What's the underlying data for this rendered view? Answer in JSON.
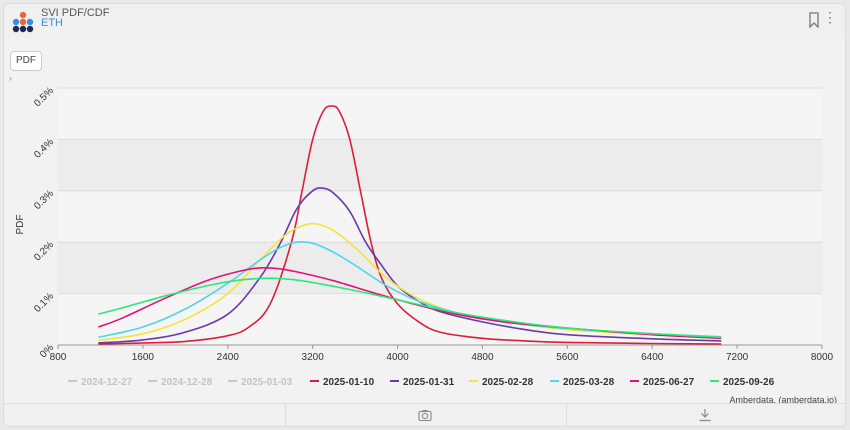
{
  "header": {
    "title": "SVI PDF/CDF",
    "subtitle": "ETH",
    "logo_icon": "amberdata-logo-icon"
  },
  "toolbar": {
    "pdf_button_label": "PDF",
    "expand_icon": "chevron-right-icon"
  },
  "footer": {
    "credit": "Amberdata, (amberdata.io)",
    "camera_icon": "camera-icon",
    "download_icon": "download-icon"
  },
  "watermark": {
    "text": "amberdata"
  },
  "chart_data": {
    "type": "line",
    "title": "",
    "xlabel": "",
    "ylabel": "PDF",
    "xlim": [
      800,
      8000
    ],
    "ylim": [
      0,
      0.5
    ],
    "x_ticks": [
      "800",
      "1600",
      "2400",
      "3200",
      "4000",
      "4800",
      "5600",
      "6400",
      "7200",
      "8000"
    ],
    "y_ticks": [
      "0%",
      "0.1%",
      "0.2%",
      "0.3%",
      "0.4%",
      "0.5%"
    ],
    "y_unit": "%",
    "grid": true,
    "legend_position": "bottom",
    "series": [
      {
        "name": "2024-12-27",
        "color": "#c8c8c8",
        "hidden": true,
        "points": []
      },
      {
        "name": "2024-12-28",
        "color": "#c8c8c8",
        "hidden": true,
        "points": []
      },
      {
        "name": "2025-01-03",
        "color": "#c8c8c8",
        "hidden": true,
        "points": []
      },
      {
        "name": "2025-01-10",
        "color": "#dc1e3c",
        "hidden": false,
        "points": [
          [
            1180,
            0.002
          ],
          [
            1600,
            0.004
          ],
          [
            2000,
            0.007
          ],
          [
            2400,
            0.018
          ],
          [
            2600,
            0.035
          ],
          [
            2800,
            0.08
          ],
          [
            3000,
            0.2
          ],
          [
            3100,
            0.3
          ],
          [
            3200,
            0.4
          ],
          [
            3300,
            0.455
          ],
          [
            3380,
            0.465
          ],
          [
            3450,
            0.455
          ],
          [
            3550,
            0.4
          ],
          [
            3650,
            0.3
          ],
          [
            3750,
            0.2
          ],
          [
            3850,
            0.13
          ],
          [
            4000,
            0.08
          ],
          [
            4200,
            0.045
          ],
          [
            4400,
            0.025
          ],
          [
            4800,
            0.013
          ],
          [
            5200,
            0.008
          ],
          [
            5600,
            0.005
          ],
          [
            6400,
            0.003
          ],
          [
            7050,
            0.002
          ]
        ]
      },
      {
        "name": "2025-01-31",
        "color": "#6a3aa5",
        "hidden": false,
        "points": [
          [
            1180,
            0.004
          ],
          [
            1600,
            0.01
          ],
          [
            2000,
            0.025
          ],
          [
            2400,
            0.06
          ],
          [
            2700,
            0.13
          ],
          [
            2900,
            0.2
          ],
          [
            3050,
            0.265
          ],
          [
            3200,
            0.3
          ],
          [
            3300,
            0.305
          ],
          [
            3400,
            0.295
          ],
          [
            3550,
            0.26
          ],
          [
            3700,
            0.2
          ],
          [
            3850,
            0.155
          ],
          [
            4000,
            0.115
          ],
          [
            4200,
            0.085
          ],
          [
            4400,
            0.065
          ],
          [
            4800,
            0.045
          ],
          [
            5200,
            0.03
          ],
          [
            5600,
            0.02
          ],
          [
            6400,
            0.012
          ],
          [
            7050,
            0.008
          ]
        ]
      },
      {
        "name": "2025-02-28",
        "color": "#f1e63a",
        "hidden": false,
        "points": [
          [
            1180,
            0.009
          ],
          [
            1600,
            0.022
          ],
          [
            2000,
            0.05
          ],
          [
            2400,
            0.1
          ],
          [
            2700,
            0.165
          ],
          [
            2950,
            0.215
          ],
          [
            3150,
            0.235
          ],
          [
            3300,
            0.232
          ],
          [
            3450,
            0.215
          ],
          [
            3650,
            0.18
          ],
          [
            3900,
            0.13
          ],
          [
            4200,
            0.09
          ],
          [
            4600,
            0.06
          ],
          [
            5000,
            0.045
          ],
          [
            5600,
            0.03
          ],
          [
            6400,
            0.02
          ],
          [
            7050,
            0.014
          ]
        ]
      },
      {
        "name": "2025-03-28",
        "color": "#4fd5ee",
        "hidden": false,
        "points": [
          [
            1180,
            0.015
          ],
          [
            1600,
            0.035
          ],
          [
            2000,
            0.07
          ],
          [
            2400,
            0.12
          ],
          [
            2700,
            0.165
          ],
          [
            2900,
            0.19
          ],
          [
            3050,
            0.2
          ],
          [
            3200,
            0.198
          ],
          [
            3400,
            0.18
          ],
          [
            3600,
            0.155
          ],
          [
            3900,
            0.115
          ],
          [
            4200,
            0.085
          ],
          [
            4600,
            0.06
          ],
          [
            5000,
            0.045
          ],
          [
            5600,
            0.032
          ],
          [
            6400,
            0.022
          ],
          [
            7050,
            0.016
          ]
        ]
      },
      {
        "name": "2025-06-27",
        "color": "#e0137a",
        "hidden": false,
        "points": [
          [
            1180,
            0.035
          ],
          [
            1400,
            0.052
          ],
          [
            1800,
            0.09
          ],
          [
            2200,
            0.125
          ],
          [
            2500,
            0.143
          ],
          [
            2700,
            0.15
          ],
          [
            2900,
            0.148
          ],
          [
            3100,
            0.14
          ],
          [
            3400,
            0.125
          ],
          [
            3800,
            0.1
          ],
          [
            4200,
            0.077
          ],
          [
            4600,
            0.058
          ],
          [
            5000,
            0.045
          ],
          [
            5600,
            0.033
          ],
          [
            6400,
            0.02
          ],
          [
            7050,
            0.013
          ]
        ]
      },
      {
        "name": "2025-09-26",
        "color": "#2ee87a",
        "hidden": false,
        "points": [
          [
            1180,
            0.06
          ],
          [
            1400,
            0.072
          ],
          [
            1800,
            0.095
          ],
          [
            2200,
            0.115
          ],
          [
            2500,
            0.126
          ],
          [
            2800,
            0.13
          ],
          [
            3100,
            0.125
          ],
          [
            3500,
            0.11
          ],
          [
            4000,
            0.088
          ],
          [
            4500,
            0.065
          ],
          [
            5000,
            0.048
          ],
          [
            5600,
            0.033
          ],
          [
            6400,
            0.022
          ],
          [
            7050,
            0.015
          ]
        ]
      }
    ]
  }
}
